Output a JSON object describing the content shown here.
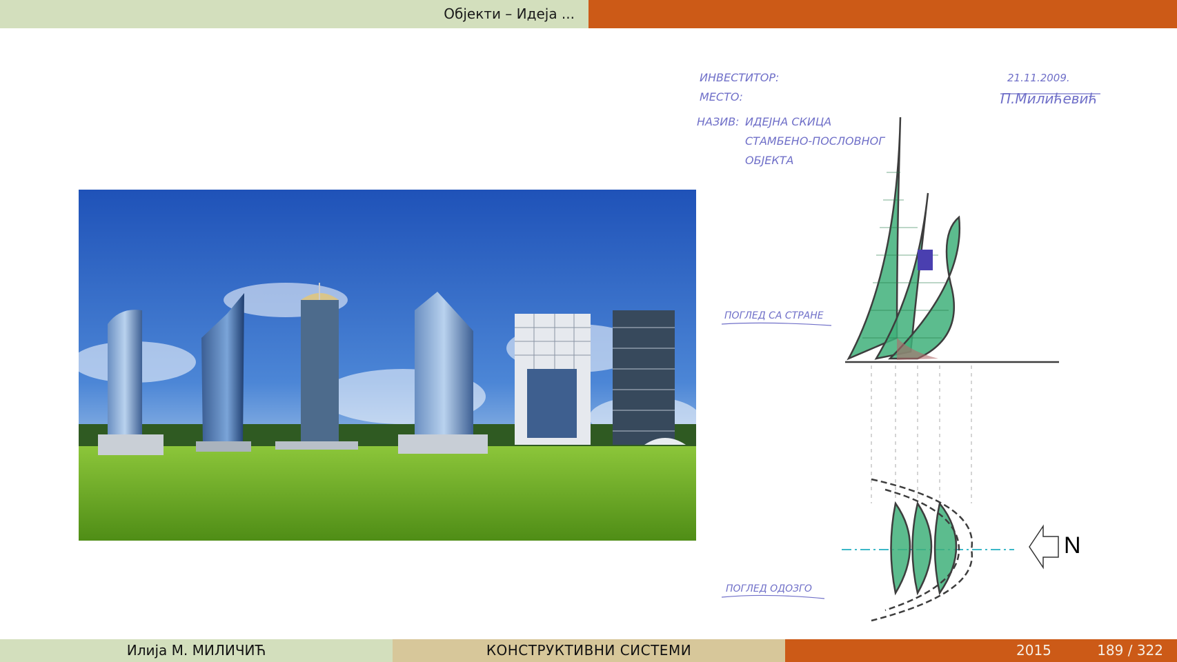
{
  "header": {
    "title": "Објекти – Идеја ..."
  },
  "footer": {
    "author": "Илија М. МИЛИЧИЋ",
    "course": "КОНСТРУКТИВНИ СИСТЕМИ",
    "year": "2015",
    "page": "189 / 322"
  },
  "sketch": {
    "investor_label": "ИНВЕСТИТОР:",
    "place_label": "МЕСТО:",
    "title_label": "НАЗИВ:",
    "title_line1": "ИДЕЈНА СКИЦА",
    "title_line2": "СТАМБЕНО-ПОСЛОВНОГ",
    "title_line3": "ОБЈЕКТА",
    "date": "21.11.2009.",
    "signature": "П.Милићевић",
    "side_view_label": "ПОГЛЕД СА СТРАНЕ",
    "top_view_label": "ПОГЛЕД ОДОЗГО",
    "north_label": "N"
  },
  "colors": {
    "accent_orange": "#cc5a17",
    "accent_green": "#d3dfbd",
    "accent_tan": "#d7c79a"
  }
}
